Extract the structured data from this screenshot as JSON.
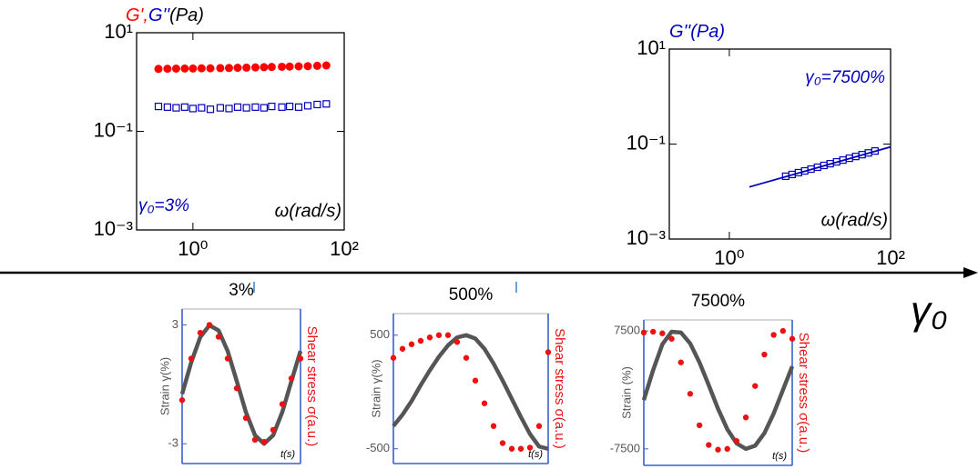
{
  "arrow_label": "γ₀",
  "chart_data": [
    {
      "type": "scatter",
      "log_x": true,
      "log_y": true,
      "axis_color": "#000000",
      "ylabel": [
        {
          "text": "G'",
          "color": "#ff0000"
        },
        {
          "text": ",",
          "color": "#ff0000"
        },
        {
          "text": "G''",
          "color": "#0000bb"
        },
        {
          "text": "(Pa)",
          "color": "#000000"
        }
      ],
      "xlabel": "ω(rad/s)",
      "annotation": "γ₀=3%",
      "xlim": [
        0.18,
        100
      ],
      "ylim": [
        0.001,
        10
      ],
      "xticks": [
        {
          "value": 1,
          "label": "10⁰"
        },
        {
          "value": 100,
          "label": "10²"
        }
      ],
      "yticks": [
        {
          "value": 0.001,
          "label": "10⁻³"
        },
        {
          "value": 0.1,
          "label": "10⁻¹"
        },
        {
          "value": 10,
          "label": "10¹"
        }
      ],
      "x": [
        0.35,
        0.46,
        0.6,
        0.78,
        1.0,
        1.3,
        1.7,
        2.3,
        3.0,
        3.9,
        5.1,
        6.7,
        8.7,
        11,
        15,
        19,
        25,
        33,
        44,
        58
      ],
      "series": [
        {
          "color": "#ff0000",
          "marker": "circle",
          "values": [
            1.85,
            1.86,
            1.87,
            1.88,
            1.88,
            1.9,
            1.9,
            1.92,
            1.93,
            1.95,
            1.96,
            1.98,
            2.0,
            2.02,
            2.04,
            2.06,
            2.08,
            2.1,
            2.13,
            2.17
          ]
        },
        {
          "color": "#0000bb",
          "marker": "open-square",
          "values": [
            0.32,
            0.31,
            0.3,
            0.31,
            0.29,
            0.3,
            0.28,
            0.3,
            0.29,
            0.31,
            0.3,
            0.31,
            0.3,
            0.32,
            0.31,
            0.32,
            0.31,
            0.33,
            0.35,
            0.36
          ]
        }
      ]
    },
    {
      "type": "scatter",
      "log_x": true,
      "log_y": true,
      "axis_color": "#000000",
      "ylabel": [
        {
          "text": "G''(Pa)",
          "color": "#0000bb"
        }
      ],
      "xlabel": "ω(rad/s)",
      "annotation": "γ₀=7500%",
      "xlim": [
        0.18,
        100
      ],
      "ylim": [
        0.001,
        10
      ],
      "xticks": [
        {
          "value": 1,
          "label": "10⁰"
        },
        {
          "value": 100,
          "label": "10²"
        }
      ],
      "yticks": [
        {
          "value": 0.001,
          "label": "10⁻³"
        },
        {
          "value": 0.1,
          "label": "10⁻¹"
        },
        {
          "value": 10,
          "label": "10¹"
        }
      ],
      "series": [
        {
          "color": "#0000bb",
          "marker": "open-square",
          "x": [
            5,
            6,
            7.2,
            8.6,
            10.3,
            12.4,
            14.9,
            17.8,
            21.4,
            25.6,
            30.8,
            36.9,
            44.3,
            53,
            64
          ],
          "values": [
            0.021,
            0.0229,
            0.025,
            0.0272,
            0.0297,
            0.0325,
            0.0355,
            0.0386,
            0.0422,
            0.046,
            0.0503,
            0.0548,
            0.0598,
            0.0651,
            0.0714
          ]
        },
        {
          "color": "#0000bb",
          "marker": "line",
          "x": [
            1.77,
            100
          ],
          "values": [
            0.0125,
            0.087
          ]
        }
      ]
    },
    {
      "type": "line",
      "title": "3%",
      "axis_color": "#3a5fcd",
      "tick_color": "#555555",
      "ylabel": "Strain γ(%)",
      "y2label": "Shear stress σ(a.u.)",
      "xlabel": "t(s)",
      "xlim": [
        0,
        130
      ],
      "ylim": [
        -4,
        3.8
      ],
      "yticks": [
        -3,
        3
      ],
      "x": [
        0,
        10,
        20,
        30,
        40,
        50,
        60,
        70,
        80,
        90,
        100,
        110,
        120,
        130
      ],
      "series": [
        {
          "color": "#555555",
          "marker": "line",
          "values": [
            -0.49,
            1.11,
            2.39,
            2.98,
            2.72,
            1.68,
            0.16,
            -1.4,
            -2.57,
            -3.0,
            -2.57,
            -1.4,
            0.16,
            1.68
          ]
        },
        {
          "color": "#ee1111",
          "marker": "dots",
          "values": [
            -0.8,
            1.3,
            2.6,
            3.0,
            2.4,
            1.3,
            -0.2,
            -1.7,
            -2.8,
            -2.9,
            -2.3,
            -1.0,
            0.3,
            1.3
          ]
        }
      ]
    },
    {
      "type": "line",
      "title": "500%",
      "axis_color": "#3a5fcd",
      "tick_color": "#555555",
      "ylabel": "Strain γ(%)",
      "y2label": "Shear stress σ(a.u.)",
      "xlabel": "t(s)",
      "xlim": [
        0,
        170
      ],
      "ylim": [
        -630,
        690
      ],
      "yticks": [
        -500,
        500
      ],
      "x": [
        0,
        10,
        20,
        30,
        40,
        50,
        60,
        70,
        80,
        90,
        100,
        110,
        120,
        130,
        140,
        150,
        160,
        170
      ],
      "series": [
        {
          "color": "#555555",
          "marker": "line",
          "values": [
            -300,
            -200,
            -80,
            60,
            190,
            310,
            410,
            480,
            500,
            470,
            380,
            250,
            100,
            -60,
            -220,
            -370,
            -480,
            -500
          ]
        },
        {
          "color": "#ee1111",
          "marker": "dots",
          "values": [
            300,
            380,
            420,
            450,
            480,
            500,
            500,
            440,
            300,
            100,
            -100,
            -300,
            -450,
            -500,
            -500,
            -490,
            -300,
            350
          ]
        }
      ]
    },
    {
      "type": "line",
      "title": "7500%",
      "axis_color": "#3a5fcd",
      "tick_color": "#555555",
      "ylabel": "Strain (%)",
      "y2label": "Shear stress σ(a.u.)",
      "xlabel": "t(s)",
      "xlim": [
        0,
        160
      ],
      "ylim": [
        -9600,
        8900
      ],
      "yticks": [
        -7500,
        7500
      ],
      "x": [
        0,
        10,
        20,
        30,
        40,
        50,
        60,
        70,
        80,
        90,
        100,
        110,
        120,
        130,
        140,
        150,
        160
      ],
      "series": [
        {
          "color": "#555555",
          "marker": "line",
          "values": [
            -1300,
            2500,
            5800,
            7400,
            7300,
            5900,
            3500,
            600,
            -2400,
            -5000,
            -6800,
            -7500,
            -7100,
            -5500,
            -3000,
            0,
            3000
          ]
        },
        {
          "color": "#ee1111",
          "marker": "dots",
          "values": [
            7300,
            7400,
            7200,
            6500,
            3500,
            -500,
            -4500,
            -7000,
            -7600,
            -7500,
            -6500,
            -3500,
            500,
            4500,
            7000,
            7500,
            6500
          ]
        }
      ]
    }
  ]
}
